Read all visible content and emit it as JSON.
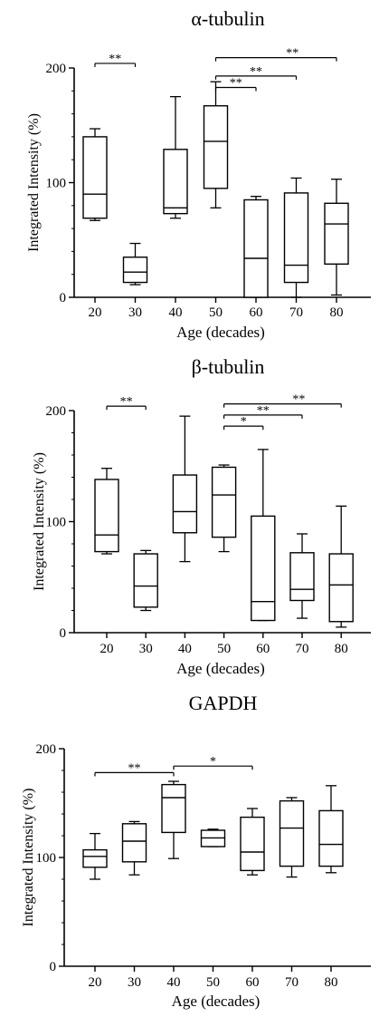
{
  "chart_data": [
    {
      "type": "box",
      "title": "α-tubulin",
      "xlabel": "Age (decades)",
      "ylabel": "Integrated Intensity (%)",
      "ylim": [
        0,
        200
      ],
      "yticks": [
        0,
        100,
        200
      ],
      "grid": false,
      "categories": [
        "20",
        "30",
        "40",
        "50",
        "60",
        "70",
        "80"
      ],
      "boxes": [
        {
          "min": 67,
          "q1": 69,
          "median": 90,
          "q3": 140,
          "max": 147
        },
        {
          "min": 11,
          "q1": 13,
          "median": 22,
          "q3": 35,
          "max": 47
        },
        {
          "min": 69,
          "q1": 73,
          "median": 78,
          "q3": 129,
          "max": 175
        },
        {
          "min": 78,
          "q1": 95,
          "median": 136,
          "q3": 167,
          "max": 188
        },
        {
          "min": 0,
          "q1": 0,
          "median": 34,
          "q3": 85,
          "max": 88
        },
        {
          "min": 0,
          "q1": 13,
          "median": 28,
          "q3": 91,
          "max": 104
        },
        {
          "min": 2,
          "q1": 29,
          "median": 64,
          "q3": 82,
          "max": 103
        }
      ],
      "significance": [
        {
          "from": "20",
          "to": "30",
          "label": "**",
          "y": 204
        },
        {
          "from": "50",
          "to": "60",
          "label": "**",
          "y": 183
        },
        {
          "from": "50",
          "to": "70",
          "label": "**",
          "y": 193
        },
        {
          "from": "50",
          "to": "80",
          "label": "**",
          "y": 209
        }
      ]
    },
    {
      "type": "box",
      "title": "β-tubulin",
      "xlabel": "Age (decades)",
      "ylabel": "Integrated Intensity (%)",
      "ylim": [
        0,
        200
      ],
      "yticks": [
        0,
        100,
        200
      ],
      "grid": false,
      "categories": [
        "20",
        "30",
        "40",
        "50",
        "60",
        "70",
        "80"
      ],
      "boxes": [
        {
          "min": 71,
          "q1": 73,
          "median": 88,
          "q3": 138,
          "max": 148
        },
        {
          "min": 20,
          "q1": 23,
          "median": 42,
          "q3": 71,
          "max": 74
        },
        {
          "min": 64,
          "q1": 90,
          "median": 109,
          "q3": 142,
          "max": 195
        },
        {
          "min": 73,
          "q1": 86,
          "median": 124,
          "q3": 149,
          "max": 151
        },
        {
          "min": 11,
          "q1": 11,
          "median": 28,
          "q3": 105,
          "max": 165
        },
        {
          "min": 13,
          "q1": 29,
          "median": 39,
          "q3": 72,
          "max": 89
        },
        {
          "min": 5,
          "q1": 10,
          "median": 43,
          "q3": 71,
          "max": 114
        }
      ],
      "significance": [
        {
          "from": "20",
          "to": "30",
          "label": "**",
          "y": 204
        },
        {
          "from": "50",
          "to": "60",
          "label": "*",
          "y": 186
        },
        {
          "from": "50",
          "to": "70",
          "label": "**",
          "y": 196
        },
        {
          "from": "50",
          "to": "80",
          "label": "**",
          "y": 206
        }
      ]
    },
    {
      "type": "box",
      "title": "GAPDH",
      "xlabel": "Age (decades)",
      "ylabel": "Integrated Intensity (%)",
      "ylim": [
        0,
        200
      ],
      "yticks": [
        0,
        100,
        200
      ],
      "grid": false,
      "categories": [
        "20",
        "30",
        "40",
        "50",
        "60",
        "70",
        "80"
      ],
      "boxes": [
        {
          "min": 80,
          "q1": 91,
          "median": 101,
          "q3": 107,
          "max": 122
        },
        {
          "min": 84,
          "q1": 96,
          "median": 115,
          "q3": 131,
          "max": 133
        },
        {
          "min": 99,
          "q1": 123,
          "median": 155,
          "q3": 167,
          "max": 170
        },
        {
          "min": 110,
          "q1": 110,
          "median": 118,
          "q3": 125,
          "max": 126
        },
        {
          "min": 84,
          "q1": 88,
          "median": 105,
          "q3": 137,
          "max": 145
        },
        {
          "min": 82,
          "q1": 92,
          "median": 127,
          "q3": 152,
          "max": 155
        },
        {
          "min": 86,
          "q1": 92,
          "median": 112,
          "q3": 143,
          "max": 166
        }
      ],
      "significance": [
        {
          "from": "20",
          "to": "40",
          "label": "**",
          "y": 178
        },
        {
          "from": "40",
          "to": "60",
          "label": "*",
          "y": 184
        }
      ]
    }
  ]
}
